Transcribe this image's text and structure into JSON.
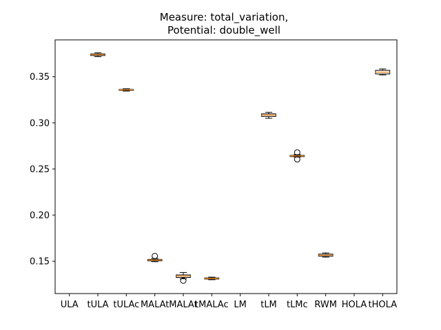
{
  "chart_data": {
    "type": "boxplot",
    "title_lines": [
      "Measure: total_variation,",
      "Potential: double_well"
    ],
    "xlabel": "",
    "ylabel": "",
    "ylim": [
      0.115,
      0.39
    ],
    "yticks": [
      0.15,
      0.2,
      0.25,
      0.3,
      0.35
    ],
    "ytick_labels": [
      "0.15",
      "0.20",
      "0.25",
      "0.30",
      "0.35"
    ],
    "grid": false,
    "legend": "none",
    "colors": {
      "median": "#f28e2b",
      "box": "#000000"
    },
    "categories": [
      "ULA",
      "tULA",
      "tULAc",
      "MALAt",
      "MALAt",
      "tMALAc",
      "LM",
      "tLM",
      "tLMc",
      "RWM",
      "HOLA",
      "tHOLA"
    ],
    "boxes": [
      null,
      {
        "whislo": 0.3718,
        "q1": 0.373,
        "med": 0.374,
        "q3": 0.3748,
        "whishi": 0.376,
        "fliers": []
      },
      {
        "whislo": 0.3345,
        "q1": 0.3352,
        "med": 0.3358,
        "q3": 0.3363,
        "whishi": 0.337,
        "fliers": []
      },
      {
        "whislo": 0.1495,
        "q1": 0.1505,
        "med": 0.1512,
        "q3": 0.152,
        "whishi": 0.153,
        "fliers": [
          0.1557
        ]
      },
      {
        "whislo": 0.131,
        "q1": 0.1325,
        "med": 0.134,
        "q3": 0.1352,
        "whishi": 0.1378,
        "fliers": [
          0.129
        ]
      },
      {
        "whislo": 0.13,
        "q1": 0.1307,
        "med": 0.1313,
        "q3": 0.132,
        "whishi": 0.1328,
        "fliers": []
      },
      null,
      {
        "whislo": 0.305,
        "q1": 0.307,
        "med": 0.3085,
        "q3": 0.3098,
        "whishi": 0.3115,
        "fliers": []
      },
      {
        "whislo": 0.263,
        "q1": 0.2635,
        "med": 0.2642,
        "q3": 0.2648,
        "whishi": 0.2655,
        "fliers": [
          0.2605,
          0.268
        ]
      },
      {
        "whislo": 0.1545,
        "q1": 0.1555,
        "med": 0.1565,
        "q3": 0.1578,
        "whishi": 0.159,
        "fliers": []
      },
      null,
      {
        "whislo": 0.352,
        "q1": 0.353,
        "med": 0.355,
        "q3": 0.357,
        "whishi": 0.3585,
        "fliers": []
      }
    ]
  }
}
